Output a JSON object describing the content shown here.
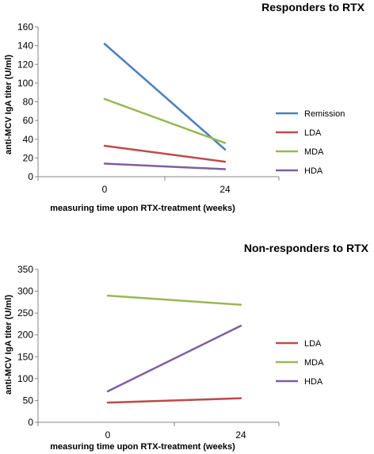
{
  "chart_data": [
    {
      "type": "line",
      "title": "Responders to RTX",
      "xlabel": "measuring time upon RTX-treatment (weeks)",
      "ylabel": "anti-MCV IgA titer (U/ml)",
      "categories": [
        "0",
        "24"
      ],
      "ylim": [
        0,
        160
      ],
      "yticks": [
        0,
        20,
        40,
        60,
        80,
        100,
        120,
        140,
        160
      ],
      "legend": "right",
      "series": [
        {
          "name": "Remission",
          "color": "#4a7ebb",
          "values": [
            142,
            29
          ]
        },
        {
          "name": "LDA",
          "color": "#be4b48",
          "values": [
            33,
            16
          ]
        },
        {
          "name": "MDA",
          "color": "#98b954",
          "values": [
            83,
            36
          ]
        },
        {
          "name": "HDA",
          "color": "#7d60a0",
          "values": [
            14,
            8
          ]
        }
      ]
    },
    {
      "type": "line",
      "title": "Non-responders to RTX",
      "xlabel": "measuring time upon RTX-treatment (weeks)",
      "ylabel": "anti-MCV IgA titer (U/ml)",
      "categories": [
        "0",
        "24"
      ],
      "ylim": [
        0,
        350
      ],
      "yticks": [
        0,
        50,
        100,
        150,
        200,
        250,
        300,
        350
      ],
      "legend": "right",
      "series": [
        {
          "name": "LDA",
          "color": "#be4b48",
          "values": [
            45,
            55
          ]
        },
        {
          "name": "MDA",
          "color": "#98b954",
          "values": [
            290,
            269
          ]
        },
        {
          "name": "HDA",
          "color": "#7d60a0",
          "values": [
            71,
            221
          ]
        }
      ]
    }
  ]
}
